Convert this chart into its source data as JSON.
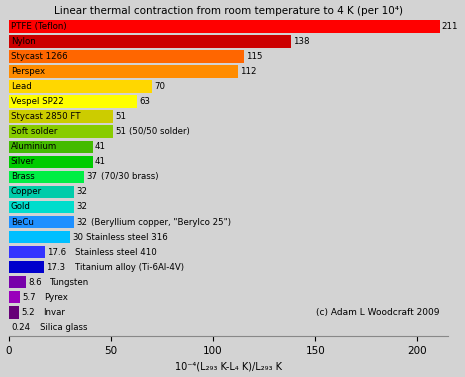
{
  "title": "Linear thermal contraction from room temperature to 4 K (per 10⁴)",
  "xlabel": "10⁻⁴(L₂₉₃ K-L₄ K)/L₂₉₃ K",
  "xlim": [
    0,
    215
  ],
  "xticks": [
    0,
    50,
    100,
    150,
    200
  ],
  "values": [
    211,
    138,
    115,
    112,
    70,
    63,
    51,
    51,
    41,
    41,
    37,
    32,
    32,
    32,
    30,
    17.6,
    17.3,
    8.6,
    5.7,
    5.2,
    0.24
  ],
  "colors": [
    "#ff0000",
    "#cc0000",
    "#ff6600",
    "#ff8c00",
    "#ffd700",
    "#ffff00",
    "#cccc00",
    "#88cc00",
    "#44bb00",
    "#00cc00",
    "#00ee44",
    "#00ccaa",
    "#00ddcc",
    "#1e90ff",
    "#00bfff",
    "#3333ff",
    "#0000cc",
    "#7700aa",
    "#9900bb",
    "#660077",
    "#330033"
  ],
  "bar_labels": [
    "PTFE (Teflon)",
    "Nylon",
    "Stycast 1266",
    "Perspex",
    "Lead",
    "Vespel SP22",
    "Stycast 2850 FT",
    "Soft solder",
    "Aluminium",
    "Silver",
    "Brass",
    "Copper",
    "Gold",
    "BeCu",
    "",
    "",
    "",
    "",
    "",
    "",
    ""
  ],
  "value_labels": [
    "211",
    "138",
    "115",
    "112",
    "70",
    "63",
    "51",
    "51",
    "41",
    "41",
    "37",
    "32",
    "32",
    "32",
    "30",
    "17.6",
    "17.3",
    "8.6",
    "5.7",
    "5.2",
    "0.24"
  ],
  "extra_annotations": {
    "7": "(50/50 solder)",
    "10": "(70/30 brass)",
    "13": "(Beryllium copper, \"Berylco 25\")",
    "14": "Stainless steel 316",
    "15": "Stainless steel 410",
    "16": "Titanium alloy (Ti-6Al-4V)",
    "17": "Tungsten",
    "18": "Pyrex",
    "19": "Invar",
    "20": "Silica glass"
  },
  "copyright": "(c) Adam L Woodcraft 2009",
  "bg_color": "#d3d3d3"
}
